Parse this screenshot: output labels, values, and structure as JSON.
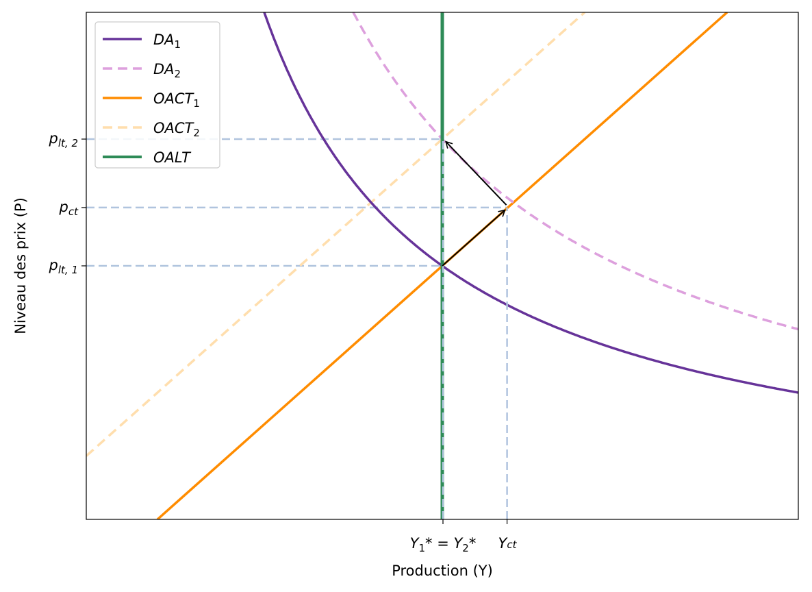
{
  "chart_data": {
    "type": "line",
    "xlabel": "Production (Y)",
    "ylabel": "Niveau des prix (P)",
    "xlim": [
      0,
      10
    ],
    "ylim": [
      0,
      10
    ],
    "grid": false,
    "legend_placement": "top-left",
    "series": [
      {
        "name": "DA",
        "sub": "1",
        "kind": "hyperbola",
        "k": 25,
        "color": "#663399",
        "dash": false
      },
      {
        "name": "DA",
        "sub": "2",
        "kind": "hyperbola",
        "k": 37.5,
        "color": "#dda0dd",
        "dash": true
      },
      {
        "name": "OACT",
        "sub": "1",
        "kind": "linear",
        "slope": 1.25,
        "point": [
          5,
          5
        ],
        "color": "#ff8c00",
        "dash": false
      },
      {
        "name": "OACT",
        "sub": "2",
        "kind": "linear",
        "slope": 1.25,
        "point": [
          5,
          7.5
        ],
        "color": "#ffdead",
        "dash": true
      },
      {
        "name": "OALT",
        "sub": "",
        "kind": "vertical",
        "x": 5,
        "color": "#2e8b57",
        "dash": false
      }
    ],
    "guide_color": "#b0c4de",
    "points": [
      {
        "x": 5,
        "y": 5
      },
      {
        "x": 5.9,
        "y": 6.15
      },
      {
        "x": 5,
        "y": 7.5
      }
    ],
    "arrows": [
      {
        "from": [
          5,
          5
        ],
        "to": [
          5.88,
          6.1
        ]
      },
      {
        "from": [
          5.9,
          6.2
        ],
        "to": [
          5.05,
          7.45
        ]
      }
    ],
    "xticks": [
      {
        "value": 5,
        "label": "Y₁* = Y₂*",
        "parts": [
          "Y",
          "1",
          "* = Y",
          "2",
          "*"
        ]
      },
      {
        "value": 5.9,
        "label": "Yct",
        "parts": [
          "Y",
          "ct"
        ]
      }
    ],
    "yticks": [
      {
        "value": 7.5,
        "base": "p",
        "sub": "lt, 2"
      },
      {
        "value": 6.15,
        "base": "p",
        "sub": "ct"
      },
      {
        "value": 5,
        "base": "p",
        "sub": "lt, 1"
      }
    ]
  }
}
